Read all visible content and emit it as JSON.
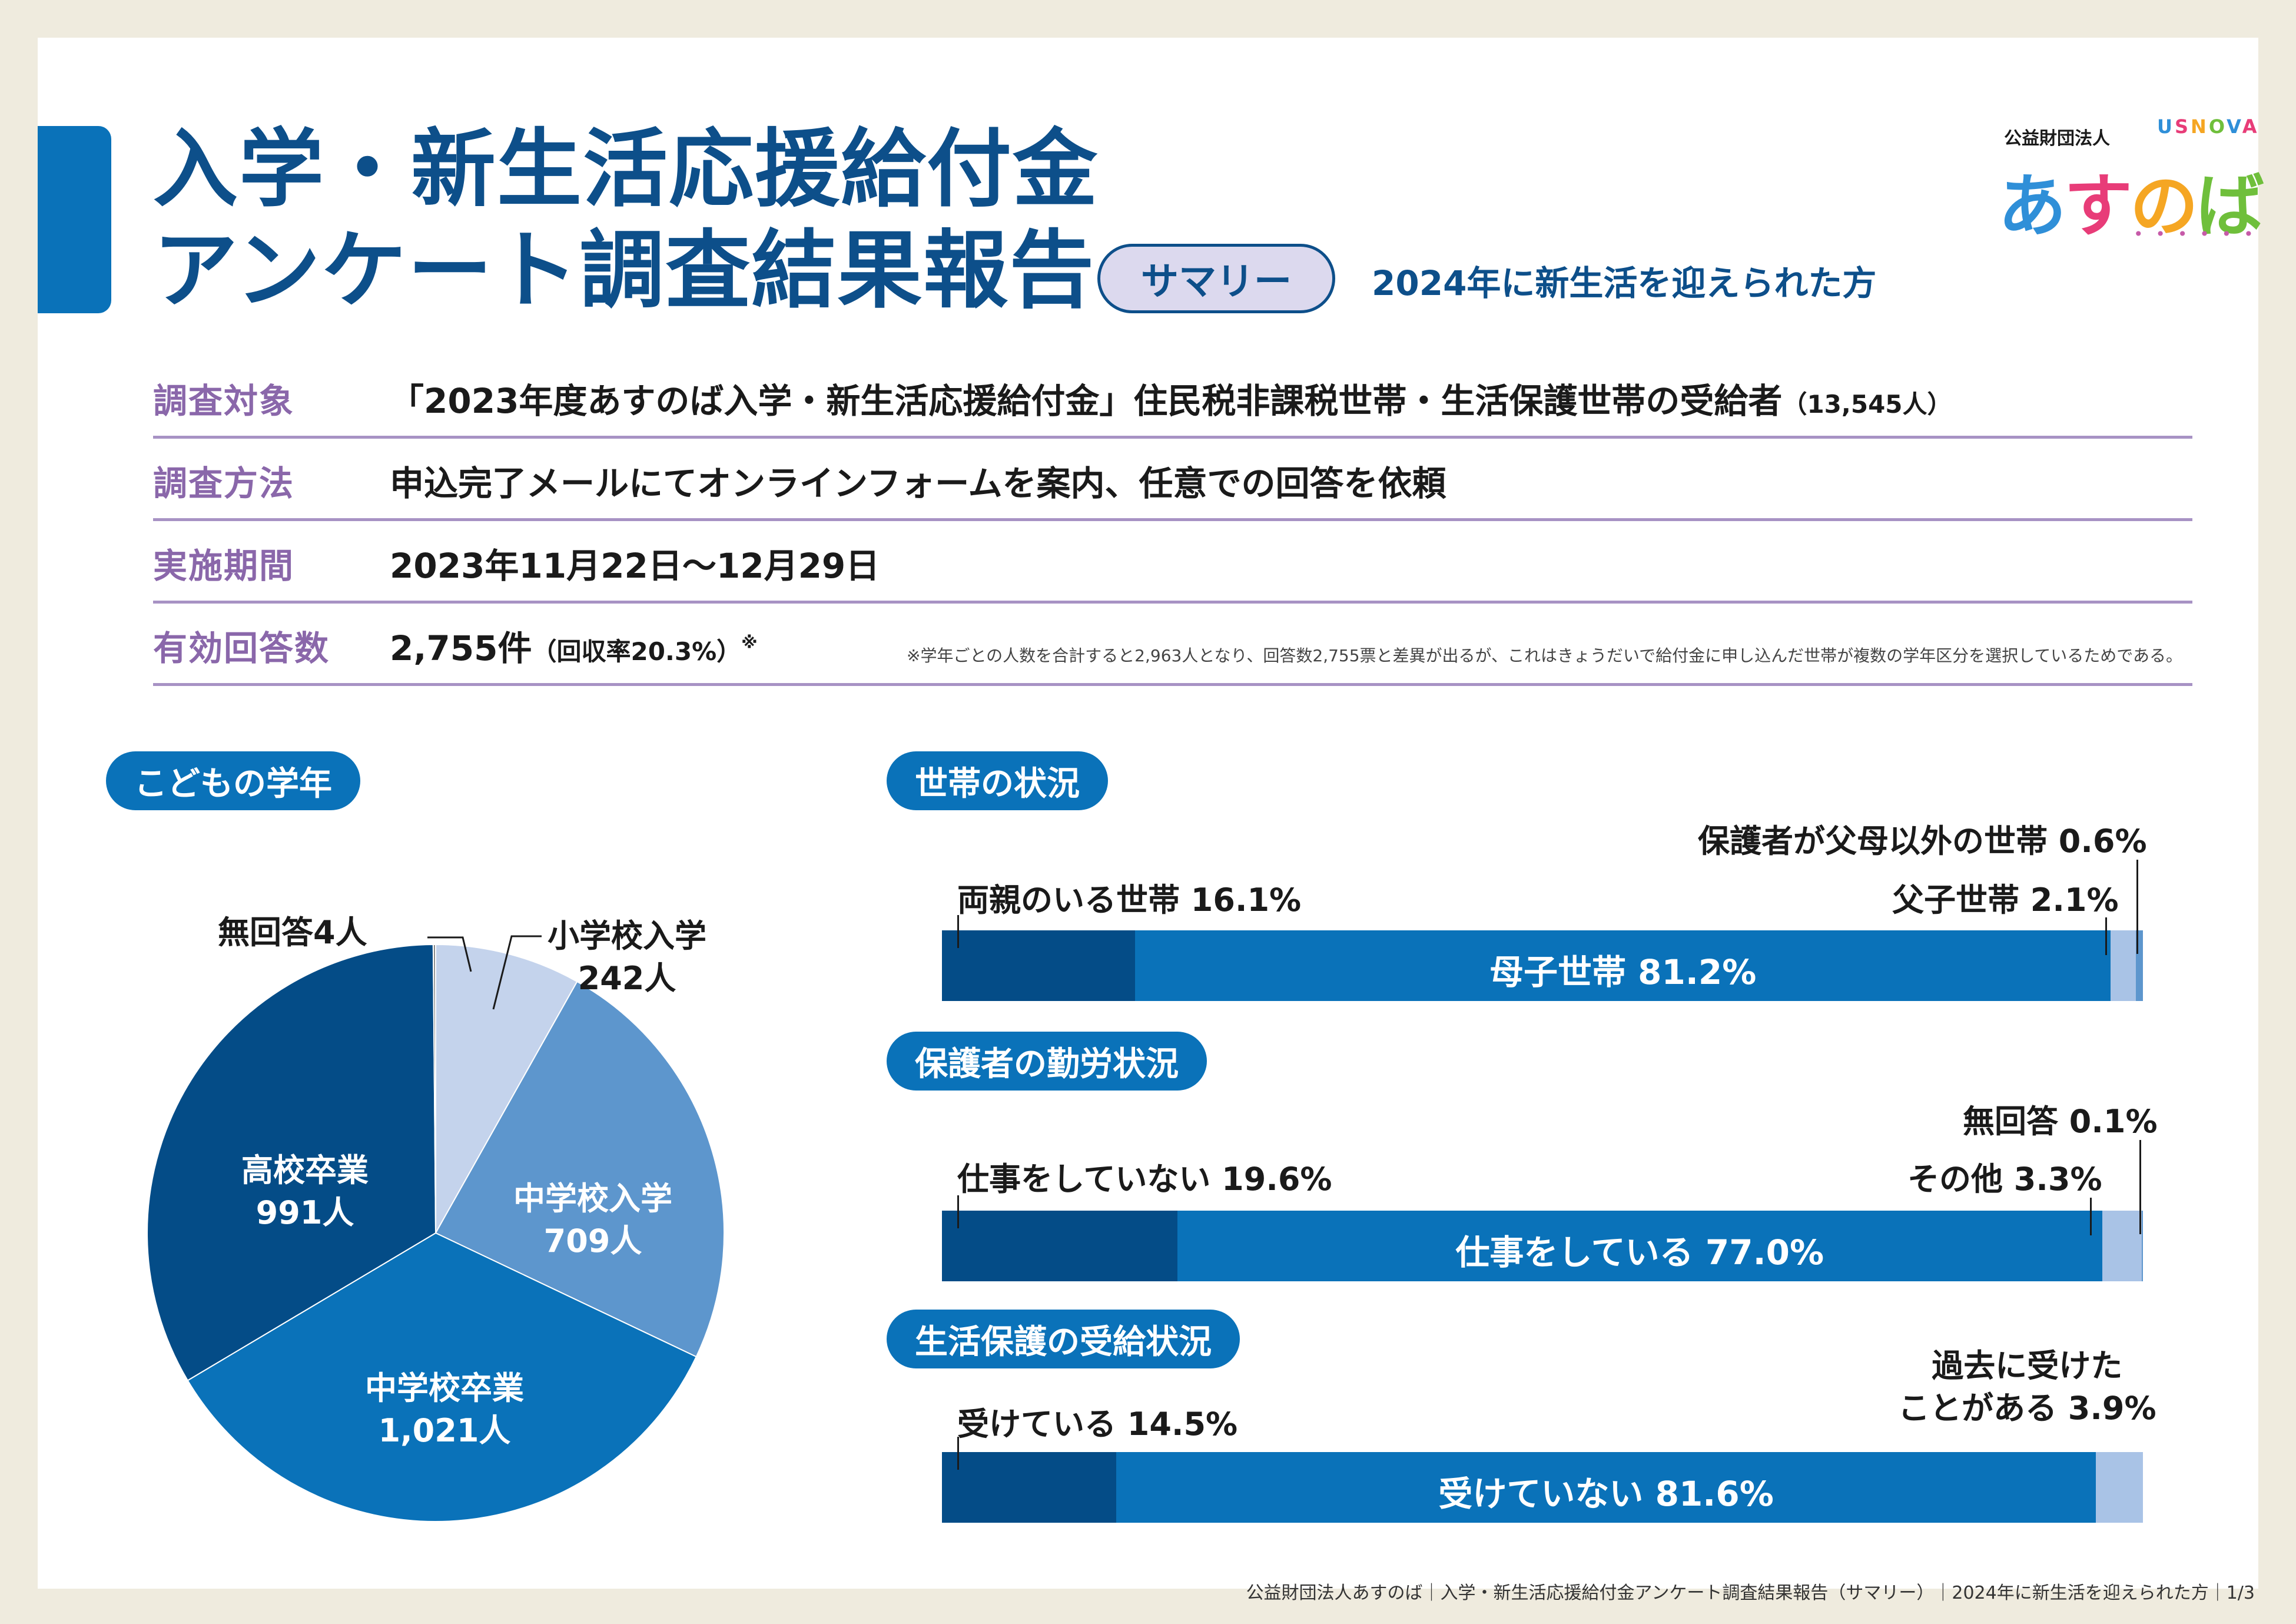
{
  "header": {
    "title_line1": "入学・新生活応援給付金",
    "title_line2": "アンケート調査結果報告",
    "summary_pill": "サマリー",
    "subtitle": "2024年に新生活を迎えられた方"
  },
  "logo": {
    "org": "公益財団法人",
    "usnova": "USNOVA",
    "brand_chars": [
      "あ",
      "す",
      "の",
      "ば"
    ],
    "brand_colors": [
      "#2f8fd8",
      "#e83c78",
      "#f5a623",
      "#6fbf3b"
    ],
    "usnova_colors": [
      "#2f8fd8",
      "#e83c78",
      "#f5a623",
      "#6fbf3b",
      "#2f8fd8",
      "#e83c78"
    ],
    "dots": "• • • • • •"
  },
  "info": {
    "target_label": "調査対象",
    "target_value": "「2023年度あすのば入学・新生活応援給付金」住民税非課税世帯・生活保護世帯の受給者",
    "target_small": "（13,545人）",
    "method_label": "調査方法",
    "method_value": "申込完了メールにてオンラインフォームを案内、任意での回答を依頼",
    "period_label": "実施期間",
    "period_value": "2023年11月22日〜12月29日",
    "responses_label": "有効回答数",
    "responses_value": "2,755件",
    "responses_small": "（回収率20.3%）",
    "responses_mark": "※",
    "note": "※学年ごとの人数を合計すると2,963人となり、回答数2,755票と差異が出るが、これはきょうだいで給付金に申し込んだ世帯が複数の学年区分を選択しているためである。"
  },
  "sections": {
    "grade": "こどもの学年",
    "household": "世帯の状況",
    "work": "保護者の勤労状況",
    "welfare": "生活保護の受給状況"
  },
  "chart_data": [
    {
      "type": "pie",
      "title": "こどもの学年",
      "slices": [
        {
          "label": "小学校入学",
          "value": 242,
          "value_text": "242人",
          "color": "#c4d3ec"
        },
        {
          "label": "中学校入学",
          "value": 709,
          "value_text": "709人",
          "color": "#5d96cd"
        },
        {
          "label": "中学校卒業",
          "value": 1021,
          "value_text": "1,021人",
          "color": "#0a72b9"
        },
        {
          "label": "高校卒業",
          "value": 991,
          "value_text": "991人",
          "color": "#044c87"
        },
        {
          "label": "無回答",
          "value": 4,
          "value_text": "無回答4人",
          "color": "#8a8a8a"
        }
      ]
    },
    {
      "type": "bar",
      "orientation": "horizontal-stacked-100",
      "title": "世帯の状況",
      "segments": [
        {
          "label": "両親のいる世帯",
          "value": 16.1,
          "text": "両親のいる世帯 16.1%",
          "color": "#044c87"
        },
        {
          "label": "母子世帯",
          "value": 81.2,
          "text": "母子世帯 81.2%",
          "color": "#0a72b9"
        },
        {
          "label": "父子世帯",
          "value": 2.1,
          "text": "父子世帯 2.1%",
          "color": "#a9c3e6"
        },
        {
          "label": "保護者が父母以外の世帯",
          "value": 0.6,
          "text": "保護者が父母以外の世帯 0.6%",
          "color": "#5d96cd"
        }
      ]
    },
    {
      "type": "bar",
      "orientation": "horizontal-stacked-100",
      "title": "保護者の勤労状況",
      "segments": [
        {
          "label": "仕事をしていない",
          "value": 19.6,
          "text": "仕事をしていない 19.6%",
          "color": "#044c87"
        },
        {
          "label": "仕事をしている",
          "value": 77.0,
          "text": "仕事をしている 77.0%",
          "color": "#0a72b9"
        },
        {
          "label": "その他",
          "value": 3.3,
          "text": "その他 3.3%",
          "color": "#a9c3e6"
        },
        {
          "label": "無回答",
          "value": 0.1,
          "text": "無回答 0.1%",
          "color": "#5d96cd"
        }
      ]
    },
    {
      "type": "bar",
      "orientation": "horizontal-stacked-100",
      "title": "生活保護の受給状況",
      "segments": [
        {
          "label": "受けている",
          "value": 14.5,
          "text": "受けている 14.5%",
          "color": "#044c87"
        },
        {
          "label": "受けていない",
          "value": 81.6,
          "text": "受けていない 81.6%",
          "color": "#0a72b9"
        },
        {
          "label": "過去に受けたことがある",
          "value": 3.9,
          "text_line1": "過去に受けた",
          "text_line2": "ことがある 3.9%",
          "color": "#a9c3e6"
        }
      ]
    }
  ],
  "footer": "公益財団法人あすのば｜入学・新生活応援給付金アンケート調査結果報告（サマリー）｜2024年に新生活を迎えられた方｜1/3"
}
